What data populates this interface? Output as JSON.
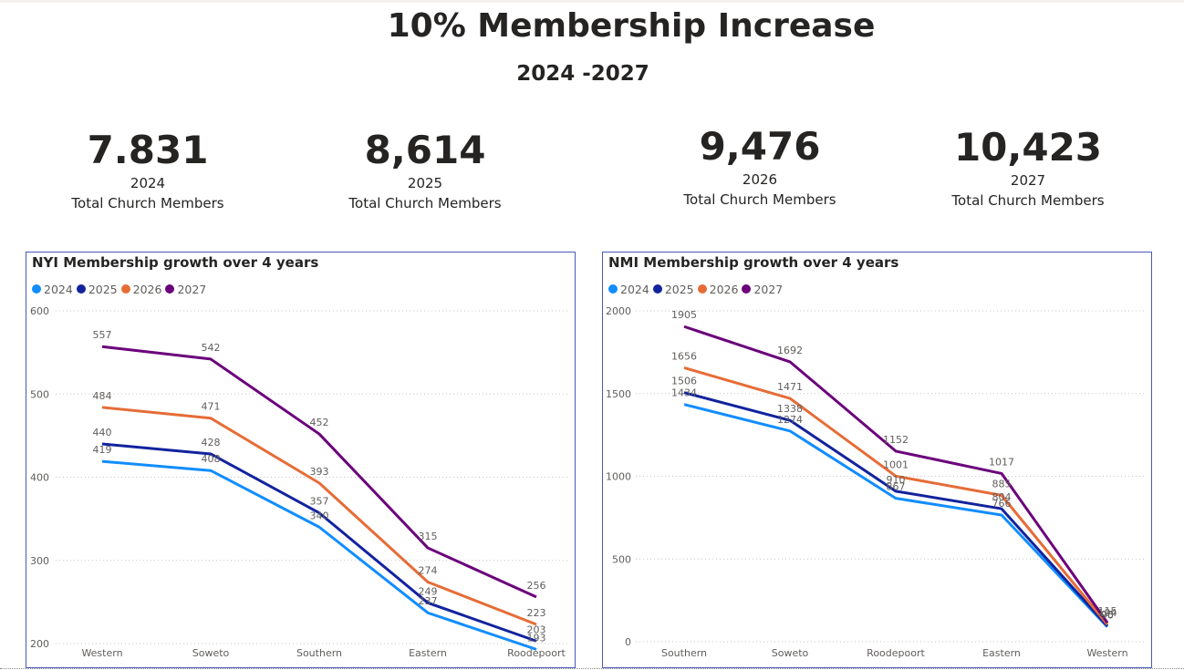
{
  "page": {
    "title": "10% Membership Increase",
    "subtitle": "2024 -2027"
  },
  "cards": [
    {
      "value": "7.831",
      "year": "2024",
      "label": "Total Church Members"
    },
    {
      "value": "8,614",
      "year": "2025",
      "label": "Total Church Members"
    },
    {
      "value": "9,476",
      "year": "2026",
      "label": "Total Church Members"
    },
    {
      "value": "10,423",
      "year": "2027",
      "label": "Total Church Members"
    }
  ],
  "colors": {
    "2024": "#118dff",
    "2025": "#12239e",
    "2026": "#e66c37",
    "2027": "#6b007b"
  },
  "chart_data": [
    {
      "type": "line",
      "title": "NYI Membership growth over 4 years",
      "categories": [
        "Western",
        "Soweto",
        "Southern",
        "Eastern",
        "Roodepoort"
      ],
      "ylim": [
        180,
        600
      ],
      "yticks": [
        200,
        300,
        400,
        500,
        600
      ],
      "grid": true,
      "legend_position": "top-left",
      "series": [
        {
          "name": "2024",
          "values": [
            419,
            408,
            340,
            237,
            193
          ]
        },
        {
          "name": "2025",
          "values": [
            440,
            428,
            357,
            249,
            203
          ]
        },
        {
          "name": "2026",
          "values": [
            484,
            471,
            393,
            274,
            223
          ]
        },
        {
          "name": "2027",
          "values": [
            557,
            542,
            452,
            315,
            256
          ]
        }
      ]
    },
    {
      "type": "line",
      "title": "NMI Membership growth over 4 years",
      "categories": [
        "Southern",
        "Soweto",
        "Roodepoort",
        "Eastern",
        "Western"
      ],
      "ylim": [
        0,
        2000
      ],
      "yticks": [
        0,
        500,
        1000,
        1500,
        2000
      ],
      "grid": true,
      "legend_position": "top-left",
      "series": [
        {
          "name": "2024",
          "values": [
            1434,
            1274,
            867,
            766,
            90
          ]
        },
        {
          "name": "2025",
          "values": [
            1506,
            1338,
            910,
            804,
            95
          ]
        },
        {
          "name": "2026",
          "values": [
            1656,
            1471,
            1001,
            885,
            104
          ]
        },
        {
          "name": "2027",
          "values": [
            1905,
            1692,
            1152,
            1017,
            115
          ]
        }
      ]
    }
  ]
}
